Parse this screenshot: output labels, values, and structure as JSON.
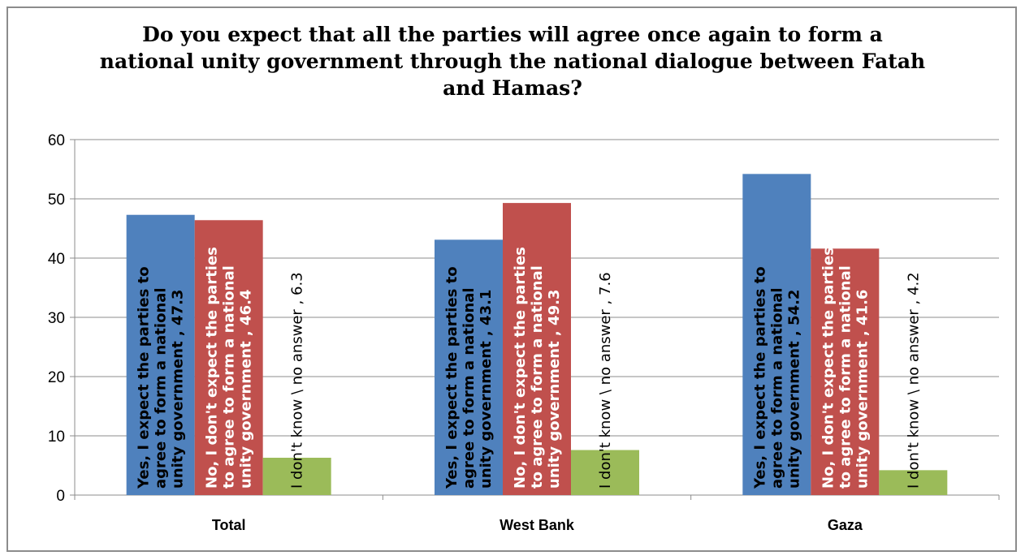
{
  "chart_data": {
    "type": "bar",
    "title": [
      "Do you expect that all the parties will agree once again to form a",
      "national unity government through the national dialogue between Fatah",
      "and Hamas?"
    ],
    "categories": [
      "Total",
      "West Bank",
      "Gaza"
    ],
    "series": [
      {
        "name": "Yes, I expect the parties to agree to form a national unity government",
        "values": [
          47.3,
          43.1,
          54.2
        ],
        "color": "#4f81bd",
        "label_lines": [
          "Yes, I expect the parties to",
          "agree to form a national",
          "unity government , "
        ],
        "label_color": "#000000",
        "label_bold": true
      },
      {
        "name": "No, I don't expect the parties to agree to form a national unity government",
        "values": [
          46.4,
          49.3,
          41.6
        ],
        "color": "#c0504d",
        "label_lines": [
          "No, I don't expect the parties",
          "to agree to form a national",
          "unity government , "
        ],
        "label_color": "#ffffff",
        "label_bold": true
      },
      {
        "name": "I don't know \\ no answer",
        "values": [
          6.3,
          7.6,
          4.2
        ],
        "color": "#9bbb59",
        "label_lines": [
          "I don't know \\ no answer , "
        ],
        "label_color": "#000000",
        "label_bold": false
      }
    ],
    "yticks": [
      0,
      10,
      20,
      30,
      40,
      50,
      60
    ],
    "ylim": [
      0,
      60
    ],
    "grid": true,
    "legend": "none"
  }
}
